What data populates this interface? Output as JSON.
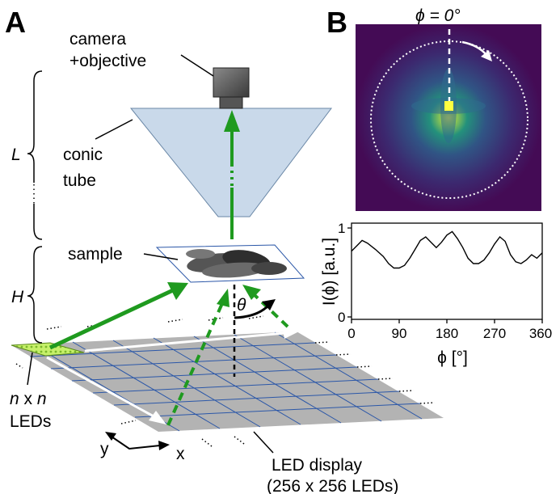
{
  "panels": {
    "a": "A",
    "b": "B"
  },
  "labels": {
    "camera": "camera",
    "objective": "+objective",
    "conic": "conic",
    "tube": "tube",
    "sample": "sample",
    "L": "L",
    "H": "H",
    "theta": "θ",
    "leds_n1": "n",
    "leds_x": "x",
    "leds_n2": "n",
    "leds_word": "LEDs",
    "axis_y": "y",
    "axis_x": "x",
    "display1": "LED display",
    "display2": "(256 x 256 LEDs)"
  },
  "panel_b": {
    "phi_eq": "ϕ = 0°"
  },
  "chart_data": {
    "type": "line",
    "ylabel": "I(ϕ) [a.u.]",
    "xlabel": "ϕ [°]",
    "xlim": [
      0,
      360
    ],
    "ylim": [
      0,
      1
    ],
    "x_ticks": [
      "0",
      "90",
      "180",
      "270",
      "360"
    ],
    "y_ticks": [
      "0",
      "1"
    ],
    "series": [
      {
        "x": [
          0,
          10,
          20,
          30,
          45,
          60,
          70,
          80,
          90,
          100,
          110,
          120,
          130,
          140,
          150,
          160,
          170,
          180,
          190,
          200,
          210,
          220,
          230,
          240,
          250,
          260,
          270,
          280,
          290,
          300,
          310,
          320,
          330,
          340,
          350,
          360
        ],
        "values": [
          0.74,
          0.8,
          0.86,
          0.83,
          0.76,
          0.68,
          0.6,
          0.55,
          0.55,
          0.58,
          0.66,
          0.76,
          0.86,
          0.9,
          0.84,
          0.78,
          0.84,
          0.92,
          0.96,
          0.88,
          0.78,
          0.66,
          0.6,
          0.6,
          0.64,
          0.72,
          0.82,
          0.9,
          0.85,
          0.7,
          0.62,
          0.6,
          0.64,
          0.7,
          0.66,
          0.72
        ]
      }
    ]
  }
}
